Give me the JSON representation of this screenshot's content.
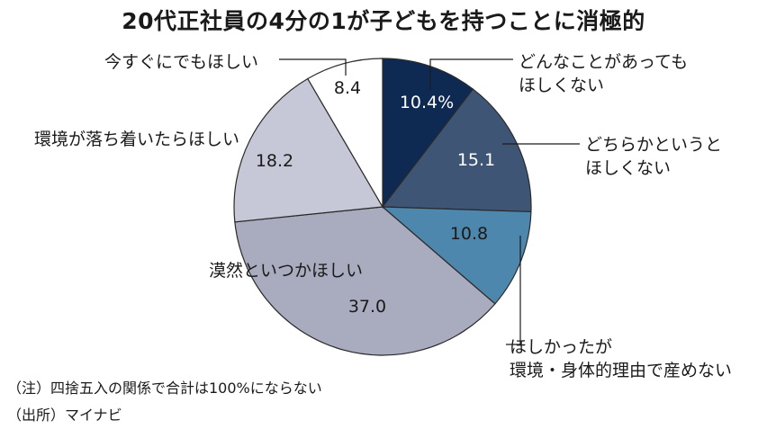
{
  "chart_data": {
    "type": "pie",
    "title": "20代正社員の4分の1が子どもを持つことに消極的",
    "unit": "%",
    "slices": [
      {
        "label": [
          "どんなことがあっても",
          "ほしくない"
        ],
        "value": 10.4,
        "display": "10.4%",
        "color": "#0e2a52"
      },
      {
        "label": [
          "どちらかというと",
          "ほしくない"
        ],
        "value": 15.1,
        "display": "15.1",
        "color": "#3f5576"
      },
      {
        "label": [
          "ほしかったが",
          "環境・身体的理由で産めない"
        ],
        "value": 10.8,
        "display": "10.8",
        "color": "#4e87ad"
      },
      {
        "label": [
          "漠然といつかほしい"
        ],
        "value": 37.0,
        "display": "37.0",
        "color": "#a9abbe"
      },
      {
        "label": [
          "環境が落ち着いたらほしい"
        ],
        "value": 18.2,
        "display": "18.2",
        "color": "#c7c8d7"
      },
      {
        "label": [
          "今すぐにでもほしい"
        ],
        "value": 8.4,
        "display": "8.4",
        "color": "#ffffff"
      }
    ]
  },
  "notes": {
    "note1": "（注）四捨五入の関係で合計は100%にならない",
    "note2": "（出所）マイナビ"
  }
}
